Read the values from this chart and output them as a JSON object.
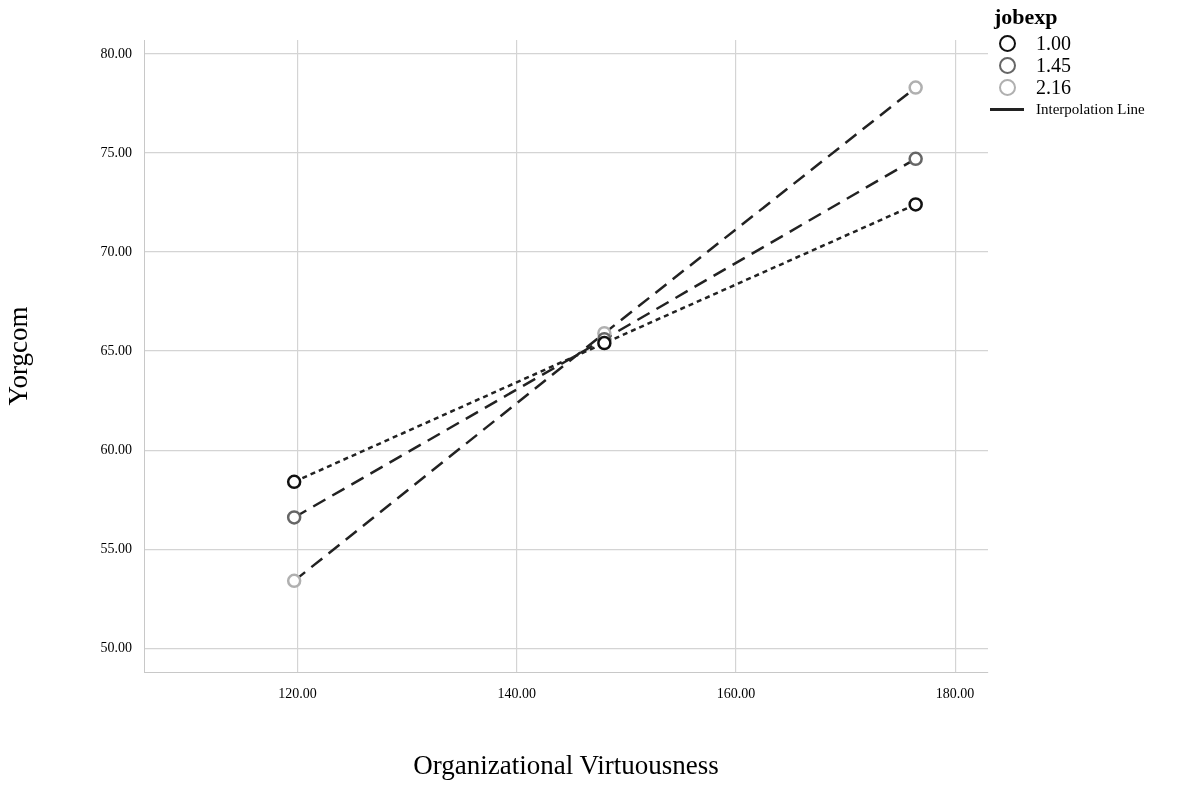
{
  "chart_data": {
    "type": "scatter",
    "xlabel": "Organizational Virtuousness",
    "ylabel": "Yorgcom",
    "legend_title": "jobexp",
    "x": [
      119.7,
      148.0,
      176.4
    ],
    "series": [
      {
        "name": "1.00",
        "color": "#111111",
        "values": [
          58.4,
          65.4,
          72.4
        ],
        "marker": "circle"
      },
      {
        "name": "1.45",
        "color": "#666666",
        "values": [
          56.6,
          65.6,
          74.7
        ],
        "marker": "circle"
      },
      {
        "name": "2.16",
        "color": "#b0b0b0",
        "values": [
          53.4,
          65.9,
          78.3
        ],
        "marker": "circle"
      },
      {
        "type": "line",
        "name": "Interpolation Line",
        "color": "#222222",
        "values": [
          58.4,
          65.4,
          72.4
        ],
        "line_style": "dotted",
        "marker": "none"
      },
      {
        "type": "line",
        "color": "#222222",
        "values": [
          56.6,
          65.6,
          74.7
        ],
        "line_style": "dashed",
        "marker": "none"
      },
      {
        "type": "line",
        "color": "#222222",
        "values": [
          53.4,
          65.9,
          78.3
        ],
        "line_style": "dashed",
        "marker": "none"
      }
    ],
    "xlim": [
      106,
      183
    ],
    "xticks": [
      {
        "value": 120,
        "label": "120.00"
      },
      {
        "value": 140,
        "label": "140.00"
      },
      {
        "value": 160,
        "label": "160.00"
      },
      {
        "value": 180,
        "label": "180.00"
      }
    ],
    "ylim": [
      48.8,
      80.7
    ],
    "yticks": [
      {
        "value": 50,
        "label": "50.00"
      },
      {
        "value": 55,
        "label": "55.00"
      },
      {
        "value": 60,
        "label": "60.00"
      },
      {
        "value": 65,
        "label": "65.00"
      },
      {
        "value": 70,
        "label": "70.00"
      },
      {
        "value": 75,
        "label": "75.00"
      },
      {
        "value": 80,
        "label": "80.00"
      }
    ],
    "grid": true,
    "legend": "top right"
  }
}
